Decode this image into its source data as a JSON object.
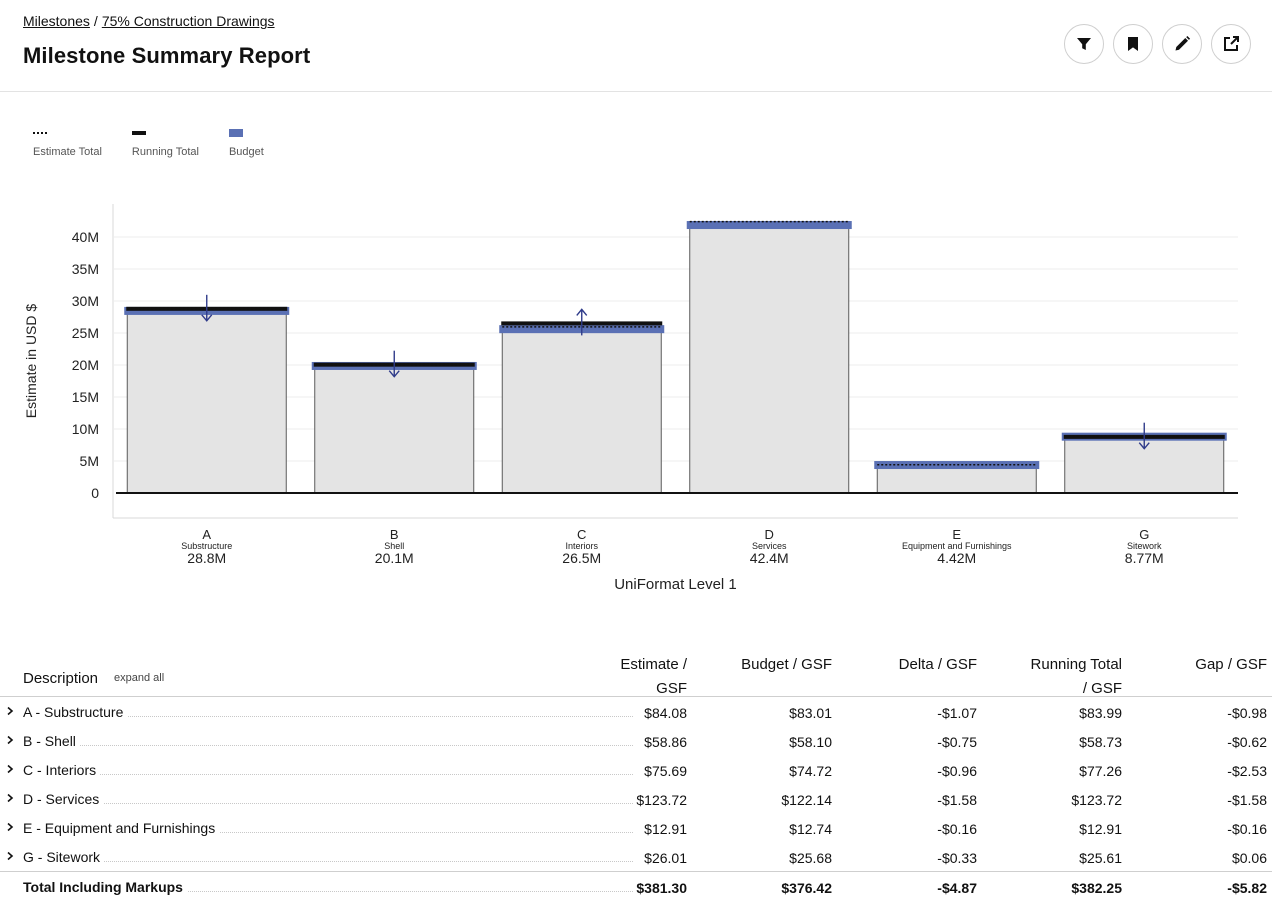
{
  "breadcrumb": {
    "root": "Milestones",
    "separator": "/",
    "current": "75% Construction Drawings"
  },
  "page": {
    "title": "Milestone Summary Report"
  },
  "toolbar": {
    "icons": [
      "filter-icon",
      "bookmark-icon",
      "pencil-icon",
      "share-icon"
    ]
  },
  "legend": {
    "estimate_total": "Estimate Total",
    "running_total": "Running Total",
    "budget": "Budget"
  },
  "chart_data": {
    "type": "bar",
    "ylabel": "Estimate in USD $",
    "xlabel": "UniFormat Level 1",
    "ylim": [
      0,
      45000000
    ],
    "yticks": [
      {
        "value": 0,
        "label": "0"
      },
      {
        "value": 5000000,
        "label": "5M"
      },
      {
        "value": 10000000,
        "label": "10M"
      },
      {
        "value": 15000000,
        "label": "15M"
      },
      {
        "value": 20000000,
        "label": "20M"
      },
      {
        "value": 25000000,
        "label": "25M"
      },
      {
        "value": 30000000,
        "label": "30M"
      },
      {
        "value": 35000000,
        "label": "35M"
      },
      {
        "value": 40000000,
        "label": "40M"
      }
    ],
    "grid": true,
    "legend_position": "top-left",
    "colors": {
      "bar_fill": "#e4e4e4",
      "budget": "#5a70b4",
      "running_total": "#111111",
      "arrow": "#2f3b8a"
    },
    "categories": [
      {
        "code": "A",
        "name": "Substructure",
        "total_label": "28.8M",
        "estimate": 28800000,
        "budget": 28450000,
        "running_total": 28780000,
        "arrow": "down"
      },
      {
        "code": "B",
        "name": "Shell",
        "total_label": "20.1M",
        "estimate": 20100000,
        "budget": 19850000,
        "running_total": 20050000,
        "arrow": "down"
      },
      {
        "code": "C",
        "name": "Interiors",
        "total_label": "26.5M",
        "estimate": 25950000,
        "budget": 25600000,
        "running_total": 26500000,
        "arrow": "up"
      },
      {
        "code": "D",
        "name": "Services",
        "total_label": "42.4M",
        "estimate": 42400000,
        "budget": 41870000,
        "running_total": null,
        "arrow": null
      },
      {
        "code": "E",
        "name": "Equipment and Furnishings",
        "total_label": "4.42M",
        "estimate": 4420000,
        "budget": 4370000,
        "running_total": null,
        "arrow": null
      },
      {
        "code": "G",
        "name": "Sitework",
        "total_label": "8.77M",
        "estimate": 8910000,
        "budget": 8800000,
        "running_total": 8770000,
        "arrow": "down"
      }
    ]
  },
  "table": {
    "headers": {
      "description": "Description",
      "expand_all": "expand all",
      "estimate": [
        "Estimate /",
        "GSF"
      ],
      "budget": [
        "Budget / GSF"
      ],
      "delta": [
        "Delta / GSF"
      ],
      "running_total": [
        "Running Total",
        "/ GSF"
      ],
      "gap": [
        "Gap / GSF"
      ]
    },
    "rows": [
      {
        "label": "A - Substructure",
        "estimate": "$84.08",
        "budget": "$83.01",
        "delta": "-$1.07",
        "running_total": "$83.99",
        "gap": "-$0.98"
      },
      {
        "label": "B - Shell",
        "estimate": "$58.86",
        "budget": "$58.10",
        "delta": "-$0.75",
        "running_total": "$58.73",
        "gap": "-$0.62"
      },
      {
        "label": "C - Interiors",
        "estimate": "$75.69",
        "budget": "$74.72",
        "delta": "-$0.96",
        "running_total": "$77.26",
        "gap": "-$2.53"
      },
      {
        "label": "D - Services",
        "estimate": "$123.72",
        "budget": "$122.14",
        "delta": "-$1.58",
        "running_total": "$123.72",
        "gap": "-$1.58"
      },
      {
        "label": "E - Equipment and Furnishings",
        "estimate": "$12.91",
        "budget": "$12.74",
        "delta": "-$0.16",
        "running_total": "$12.91",
        "gap": "-$0.16"
      },
      {
        "label": "G - Sitework",
        "estimate": "$26.01",
        "budget": "$25.68",
        "delta": "-$0.33",
        "running_total": "$25.61",
        "gap": "$0.06"
      }
    ],
    "total": {
      "label": "Total Including Markups",
      "estimate": "$381.30",
      "budget": "$376.42",
      "delta": "-$4.87",
      "running_total": "$382.25",
      "gap": "-$5.82"
    }
  }
}
